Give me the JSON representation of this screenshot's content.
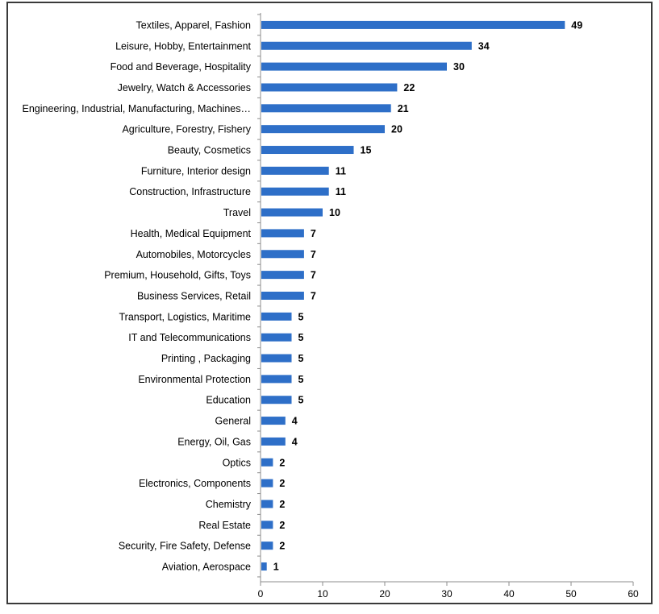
{
  "chart_data": {
    "type": "bar",
    "orientation": "horizontal",
    "categories": [
      "Textiles, Apparel, Fashion",
      "Leisure, Hobby, Entertainment",
      "Food and Beverage, Hospitality",
      "Jewelry, Watch & Accessories",
      "Engineering, Industrial, Manufacturing, Machines…",
      "Agriculture, Forestry, Fishery",
      "Beauty, Cosmetics",
      "Furniture, Interior design",
      "Construction, Infrastructure",
      "Travel",
      "Health, Medical Equipment",
      "Automobiles, Motorcycles",
      "Premium, Household, Gifts, Toys",
      "Business Services, Retail",
      "Transport, Logistics, Maritime",
      "IT and Telecommunications",
      "Printing , Packaging",
      "Environmental Protection",
      "Education",
      "General",
      "Energy, Oil, Gas",
      "Optics",
      "Electronics, Components",
      "Chemistry",
      "Real Estate",
      "Security, Fire Safety, Defense",
      "Aviation, Aerospace"
    ],
    "values": [
      49,
      34,
      30,
      22,
      21,
      20,
      15,
      11,
      11,
      10,
      7,
      7,
      7,
      7,
      5,
      5,
      5,
      5,
      5,
      4,
      4,
      2,
      2,
      2,
      2,
      2,
      1
    ],
    "xlim": [
      0,
      60
    ],
    "xticks": [
      0,
      10,
      20,
      30,
      40,
      50,
      60
    ],
    "grid": false,
    "bar_color": "#2E6FC8",
    "data_labels": true
  }
}
